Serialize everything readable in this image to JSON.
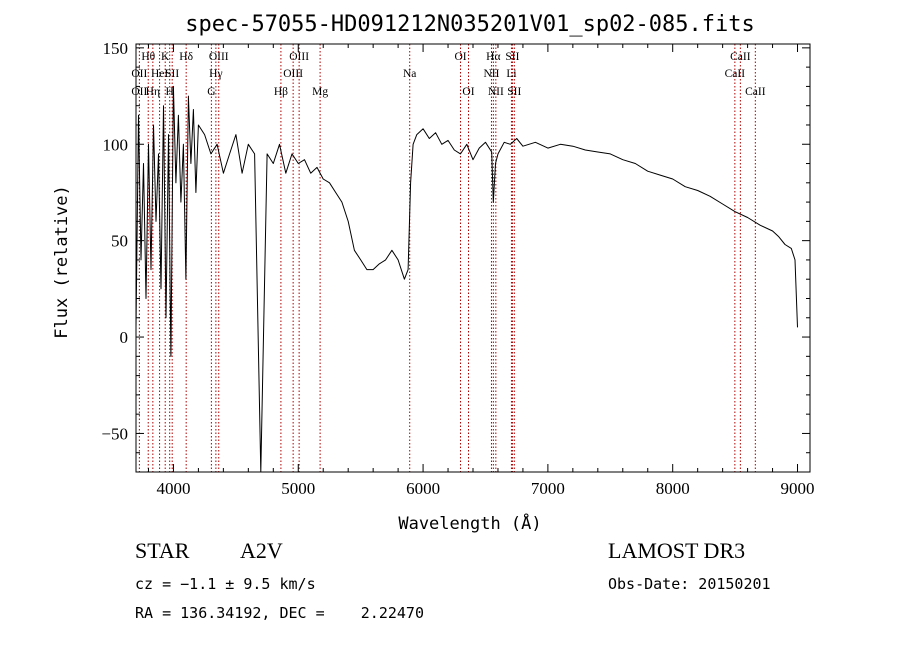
{
  "chart_data": {
    "type": "line",
    "title": "spec-57055-HD091212N035201V01_sp02-085.fits",
    "xlabel": "Wavelength (Å)",
    "ylabel": "Flux (relative)",
    "xlim": [
      3700,
      9100
    ],
    "ylim": [
      -70,
      152
    ],
    "xticks": [
      4000,
      5000,
      6000,
      7000,
      8000,
      9000
    ],
    "yticks": [
      -50,
      0,
      50,
      100,
      150
    ],
    "grid": false,
    "series": [
      {
        "x": [
          3700,
          3720,
          3740,
          3760,
          3780,
          3800,
          3820,
          3840,
          3860,
          3880,
          3900,
          3920,
          3940,
          3960,
          3980,
          4000,
          4020,
          4040,
          4060,
          4080,
          4100,
          4120,
          4140,
          4160,
          4180,
          4200,
          4250,
          4300,
          4350,
          4400,
          4450,
          4500,
          4550,
          4600,
          4650,
          4700,
          4750,
          4800,
          4850,
          4900,
          4950,
          5000,
          5050,
          5100,
          5150,
          5200,
          5250,
          5300,
          5350,
          5400,
          5450,
          5500,
          5550,
          5600,
          5650,
          5700,
          5750,
          5800,
          5850,
          5880,
          5900,
          5920,
          5950,
          6000,
          6050,
          6100,
          6150,
          6200,
          6250,
          6300,
          6350,
          6400,
          6450,
          6500,
          6550,
          6563,
          6580,
          6600,
          6650,
          6700,
          6750,
          6800,
          6900,
          7000,
          7100,
          7200,
          7300,
          7400,
          7500,
          7600,
          7700,
          7800,
          7900,
          8000,
          8100,
          8200,
          8300,
          8400,
          8500,
          8600,
          8700,
          8800,
          8850,
          8900,
          8950,
          8980,
          9000
        ],
        "y": [
          5,
          115,
          40,
          90,
          20,
          100,
          35,
          110,
          60,
          95,
          25,
          120,
          10,
          105,
          -10,
          130,
          80,
          115,
          70,
          100,
          30,
          125,
          90,
          118,
          75,
          110,
          105,
          95,
          100,
          85,
          95,
          105,
          85,
          100,
          95,
          -70,
          95,
          90,
          100,
          85,
          95,
          90,
          92,
          85,
          88,
          82,
          80,
          75,
          70,
          60,
          45,
          40,
          35,
          35,
          38,
          40,
          45,
          40,
          30,
          35,
          80,
          100,
          105,
          108,
          103,
          106,
          100,
          102,
          97,
          95,
          100,
          92,
          98,
          101,
          96,
          70,
          90,
          95,
          101,
          100,
          103,
          99,
          101,
          98,
          100,
          99,
          97,
          96,
          95,
          92,
          90,
          86,
          84,
          82,
          78,
          76,
          73,
          69,
          65,
          62,
          58,
          55,
          52,
          48,
          46,
          40,
          5
        ]
      }
    ],
    "spectral_lines": [
      {
        "x": 3798,
        "name": "Hθ",
        "row": 1
      },
      {
        "x": 3727,
        "name": "OII",
        "row": 2
      },
      {
        "x": 3727,
        "name": "OII",
        "row": 3
      },
      {
        "x": 3835,
        "name": "Hη",
        "row": 3
      },
      {
        "x": 3889,
        "name": "HeI",
        "row": 2
      },
      {
        "x": 3934,
        "name": "K",
        "row": 1
      },
      {
        "x": 3970,
        "name": "H",
        "row": 3
      },
      {
        "x": 3990,
        "name": "SII",
        "row": 2
      },
      {
        "x": 4102,
        "name": "Hδ",
        "row": 1
      },
      {
        "x": 4304,
        "name": "G",
        "row": 3
      },
      {
        "x": 4340,
        "name": "Hγ",
        "row": 2
      },
      {
        "x": 4363,
        "name": "OIII",
        "row": 1
      },
      {
        "x": 4861,
        "name": "Hβ",
        "row": 3
      },
      {
        "x": 4959,
        "name": "OIII",
        "row": 2
      },
      {
        "x": 5007,
        "name": "OIII",
        "row": 1
      },
      {
        "x": 5175,
        "name": "Mg",
        "row": 3
      },
      {
        "x": 5893,
        "name": "Na",
        "row": 2
      },
      {
        "x": 6300,
        "name": "OI",
        "row": 1
      },
      {
        "x": 6364,
        "name": "OI",
        "row": 3
      },
      {
        "x": 6548,
        "name": "NII",
        "row": 2
      },
      {
        "x": 6563,
        "name": "Hα",
        "row": 1
      },
      {
        "x": 6583,
        "name": "NII",
        "row": 3
      },
      {
        "x": 6708,
        "name": "Li",
        "row": 2
      },
      {
        "x": 6716,
        "name": "SII",
        "row": 1
      },
      {
        "x": 6731,
        "name": "SII",
        "row": 3
      },
      {
        "x": 8498,
        "name": "CaII",
        "row": 2
      },
      {
        "x": 8542,
        "name": "CaII",
        "row": 1
      },
      {
        "x": 8662,
        "name": "CaII",
        "row": 3
      }
    ]
  },
  "info": {
    "object_type": "STAR",
    "subclass": "A2V",
    "cz": "cz = −1.1 ± 9.5 km/s",
    "coords": "RA = 136.34192, DEC =    2.22470",
    "survey": "LAMOST DR3",
    "obs_date": "Obs-Date: 20150201"
  }
}
